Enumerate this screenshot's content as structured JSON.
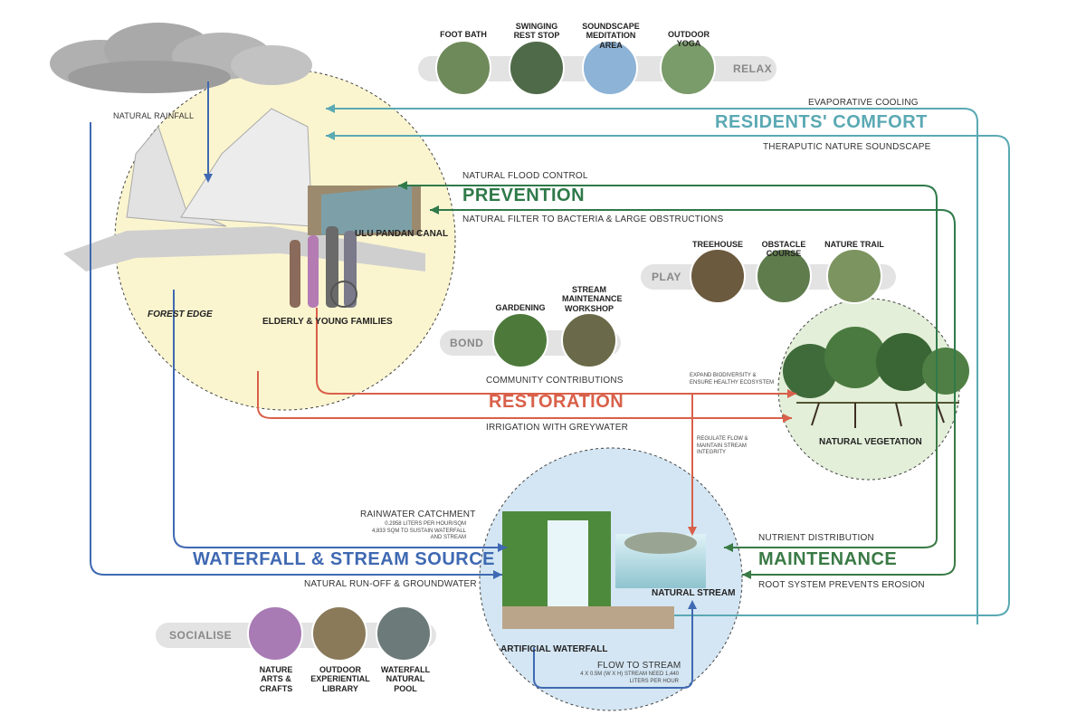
{
  "relax": {
    "label": "RELAX",
    "items": [
      "FOOT BATH",
      "SWINGING REST STOP",
      "SOUNDSCAPE MEDITATION AREA",
      "OUTDOOR YOGA"
    ]
  },
  "play": {
    "label": "PLAY",
    "items": [
      "TREEHOUSE",
      "OBSTACLE COURSE",
      "NATURE TRAIL"
    ]
  },
  "bond": {
    "label": "BOND",
    "items": [
      "GARDENING",
      "STREAM MAINTENANCE WORKSHOP"
    ]
  },
  "socialise": {
    "label": "SOCIALISE",
    "items": [
      "NATURE ARTS & CRAFTS",
      "OUTDOOR EXPERIENTIAL LIBRARY",
      "WATERFALL NATURAL POOL"
    ]
  },
  "comfort": {
    "title": "RESIDENTS' COMFORT",
    "top": "EVAPORATIVE COOLING",
    "bottom": "THERAPUTIC NATURE SOUNDSCAPE"
  },
  "prevention": {
    "title": "PREVENTION",
    "top": "NATURAL FLOOD CONTROL",
    "bottom": "NATURAL FILTER TO BACTERIA & LARGE OBSTRUCTIONS"
  },
  "restoration": {
    "title": "RESTORATION",
    "top": "COMMUNITY CONTRIBUTIONS",
    "bottom": "IRRIGATION WITH GREYWATER",
    "note_bio": "EXPAND BIODIVERSITY & ENSURE HEALTHY ECOSYSTEM",
    "note_flow": "REGULATE FLOW & MAINTAIN STREAM INTEGRITY"
  },
  "waterfall": {
    "title": "WATERFALL & STREAM SOURCE",
    "top": "RAINWATER CATCHMENT",
    "top_note": "0.2958 LITERS PER HOUR/SQM 4,833 SQM TO SUSTAIN WATERFALL AND STREAM",
    "bottom": "NATURAL RUN-OFF & GROUNDWATER"
  },
  "maintenance": {
    "title": "MAINTENANCE",
    "top": "NUTRIENT DISTRIBUTION",
    "bottom": "ROOT SYSTEM PREVENTS EROSION"
  },
  "nodes": {
    "rainfall": "NATURAL RAINFALL",
    "canal": "ULU PANDAN CANAL",
    "forest_edge": "FOREST EDGE",
    "families": "ELDERLY & YOUNG FAMILIES",
    "vegetation": "NATURAL VEGETATION",
    "stream": "NATURAL STREAM",
    "waterfall": "ARTIFICIAL WATERFALL",
    "flow": "FLOW TO STREAM",
    "flow_note": "4 X 0.5M (W X H) STREAM NEED 1,440 LITERS PER HOUR"
  },
  "colors": {
    "comfort": "#5aa9b3",
    "prevention": "#2f7a4a",
    "restoration": "#d9604a",
    "waterfall": "#3f69b2",
    "maintenance": "#3a7a45"
  }
}
